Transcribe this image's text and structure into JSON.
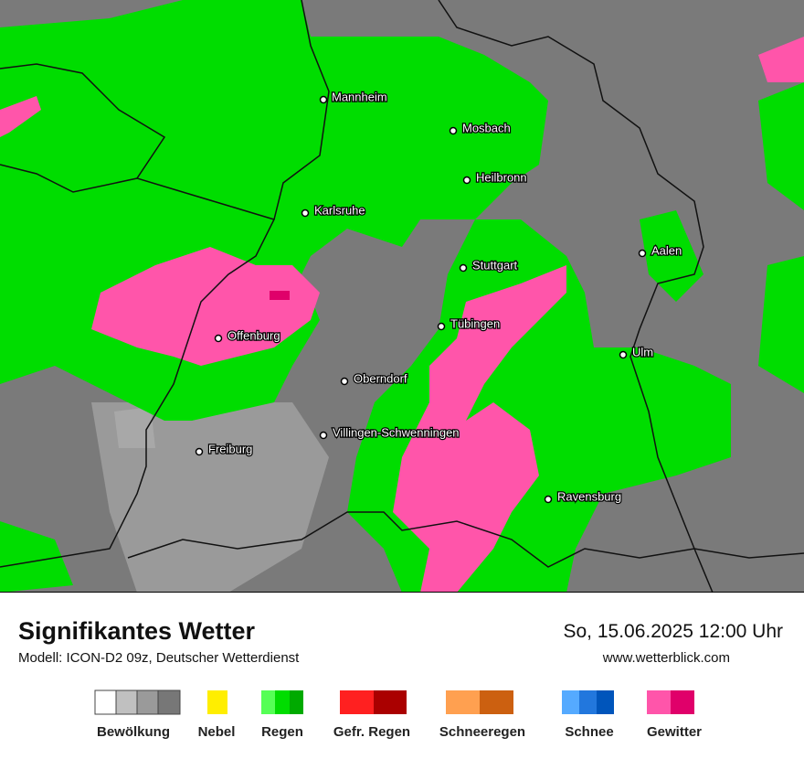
{
  "header": {
    "title": "Signifikantes Wetter",
    "subtitle": "Modell: ICON-D2 09z, Deutscher Wetterdienst",
    "datetime": "So, 15.06.2025 12:00 Uhr",
    "website": "www.wetterblick.com"
  },
  "cities": [
    "Mannheim",
    "Mosbach",
    "Heilbronn",
    "Karlsruhe",
    "Aalen",
    "Stuttgart",
    "Tübingen",
    "Offenburg",
    "Ulm",
    "Oberndorf",
    "Villingen-Schwenningen",
    "Freiburg",
    "Ravensburg"
  ],
  "legend": [
    "Bewölkung",
    "Nebel",
    "Regen",
    "Gefr. Regen",
    "Schneeregen",
    "Schnee",
    "Gewitter"
  ]
}
